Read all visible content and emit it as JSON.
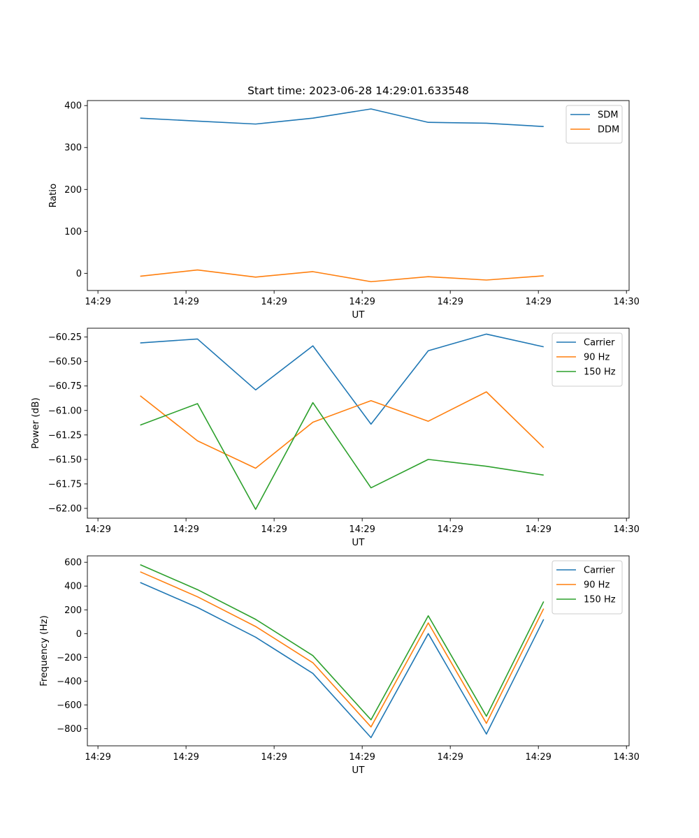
{
  "colors": {
    "blue": "#1f77b4",
    "orange": "#ff7f0e",
    "green": "#2ca02c"
  },
  "chart_data": [
    {
      "type": "line",
      "title": "Start time: 2023-06-28 14:29:01.633548",
      "xlabel": "UT",
      "ylabel": "Ratio",
      "x_tick_labels": [
        "14:29",
        "14:29",
        "14:29",
        "14:29",
        "14:29",
        "14:29",
        "14:30"
      ],
      "x_tick_values": [
        0,
        1,
        2,
        3,
        4,
        5,
        6
      ],
      "x_range": [
        -0.12,
        6.03
      ],
      "x": [
        0.48,
        1.13,
        1.79,
        2.44,
        3.1,
        3.75,
        4.41,
        5.06
      ],
      "y_ticks": [
        0,
        100,
        200,
        300,
        400
      ],
      "ylim": [
        -41,
        412
      ],
      "legend": "top-right",
      "series": [
        {
          "name": "SDM",
          "color": "blue",
          "values": [
            370,
            363,
            356,
            370,
            392,
            360,
            358,
            350
          ]
        },
        {
          "name": "DDM",
          "color": "orange",
          "values": [
            -7,
            8,
            -9,
            4,
            -20,
            -8,
            -16,
            -6
          ]
        }
      ]
    },
    {
      "type": "line",
      "title": "",
      "xlabel": "UT",
      "ylabel": "Power (dB)",
      "x_tick_labels": [
        "14:29",
        "14:29",
        "14:29",
        "14:29",
        "14:29",
        "14:29",
        "14:30"
      ],
      "x_tick_values": [
        0,
        1,
        2,
        3,
        4,
        5,
        6
      ],
      "x_range": [
        -0.12,
        6.03
      ],
      "x": [
        0.48,
        1.13,
        1.79,
        2.44,
        3.1,
        3.75,
        4.41,
        5.06
      ],
      "y_ticks": [
        -62.0,
        -61.75,
        -61.5,
        -61.25,
        -61.0,
        -60.75,
        -60.5,
        -60.25
      ],
      "y_tick_labels": [
        "−62.00",
        "−61.75",
        "−61.50",
        "−61.25",
        "−61.00",
        "−60.75",
        "−60.50",
        "−60.25"
      ],
      "ylim": [
        -62.1,
        -60.16
      ],
      "legend": "top-right",
      "series": [
        {
          "name": "Carrier",
          "color": "blue",
          "values": [
            -60.31,
            -60.27,
            -60.79,
            -60.34,
            -61.14,
            -60.39,
            -60.22,
            -60.35
          ]
        },
        {
          "name": "90 Hz",
          "color": "orange",
          "values": [
            -60.85,
            -61.31,
            -61.59,
            -61.12,
            -60.9,
            -61.11,
            -60.81,
            -61.38
          ]
        },
        {
          "name": "150 Hz",
          "color": "green",
          "values": [
            -61.15,
            -60.93,
            -62.01,
            -60.92,
            -61.79,
            -61.5,
            -61.57,
            -61.66
          ]
        }
      ]
    },
    {
      "type": "line",
      "title": "",
      "xlabel": "UT",
      "ylabel": "Frequency (Hz)",
      "x_tick_labels": [
        "14:29",
        "14:29",
        "14:29",
        "14:29",
        "14:29",
        "14:29",
        "14:30"
      ],
      "x_tick_values": [
        0,
        1,
        2,
        3,
        4,
        5,
        6
      ],
      "x_range": [
        -0.12,
        6.03
      ],
      "x": [
        0.48,
        1.13,
        1.79,
        2.44,
        3.1,
        3.75,
        4.41,
        5.06
      ],
      "y_ticks": [
        -800,
        -600,
        -400,
        -200,
        0,
        200,
        400,
        600
      ],
      "y_tick_labels": [
        "−800",
        "−600",
        "−400",
        "−200",
        "0",
        "200",
        "400",
        "600"
      ],
      "ylim": [
        -944,
        654
      ],
      "legend": "top-right",
      "series": [
        {
          "name": "Carrier",
          "color": "blue",
          "values": [
            430,
            220,
            -30,
            -335,
            -875,
            0,
            -845,
            120
          ]
        },
        {
          "name": "90 Hz",
          "color": "orange",
          "values": [
            520,
            310,
            60,
            -245,
            -785,
            90,
            -755,
            210
          ]
        },
        {
          "name": "150 Hz",
          "color": "green",
          "values": [
            580,
            370,
            120,
            -185,
            -725,
            150,
            -695,
            270
          ]
        }
      ]
    }
  ]
}
